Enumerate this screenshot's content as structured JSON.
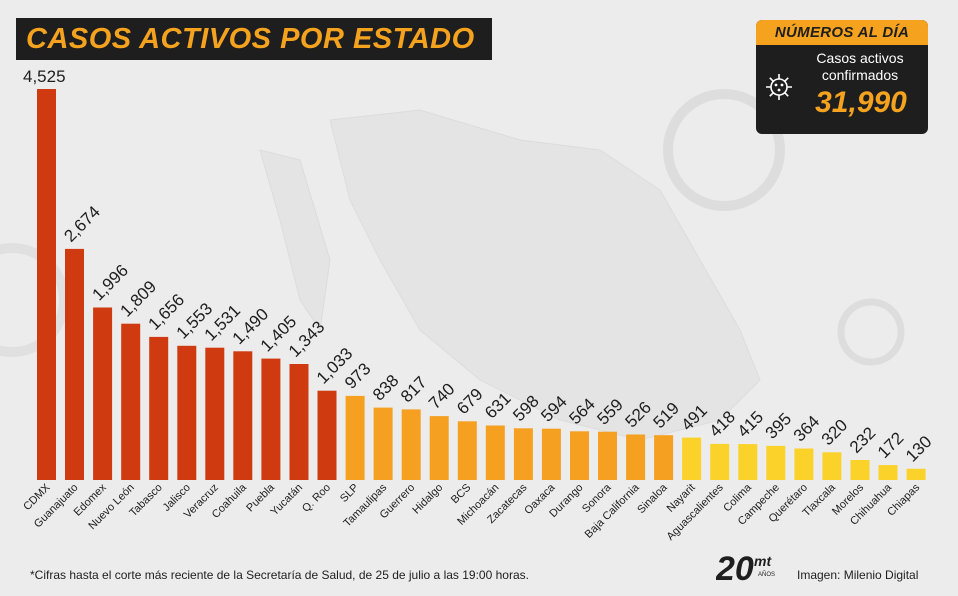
{
  "header": {
    "title": "CASOS ACTIVOS POR ESTADO"
  },
  "summary": {
    "heading": "NÚMEROS AL DÍA",
    "label_line1": "Casos activos",
    "label_line2": "confirmados",
    "value": "31,990",
    "icon": "virus-icon"
  },
  "footer": {
    "note": "*Cifras hasta el corte más reciente de la Secretaría de Salud, de 25 de julio a las 19:00 horas.",
    "credit": "Imagen: Milenio Digital",
    "logo_number": "20",
    "logo_brand": "mt",
    "logo_sub": "AÑOS"
  },
  "colors": {
    "high": "#cf3a10",
    "mid": "#f5a021",
    "low": "#fad22a",
    "title_text": "#f5a21e",
    "dark": "#1e1e1e"
  },
  "chart_data": {
    "type": "bar",
    "title": "CASOS ACTIVOS POR ESTADO",
    "xlabel": "",
    "ylabel": "",
    "ylim": [
      0,
      4525
    ],
    "grid": false,
    "categories": [
      "CDMX",
      "Guanajuato",
      "Edomex",
      "Nuevo León",
      "Tabasco",
      "Jalisco",
      "Veracruz",
      "Coahuila",
      "Puebla",
      "Yucatán",
      "Q. Roo",
      "SLP",
      "Tamaulipas",
      "Guerrero",
      "Hidalgo",
      "BCS",
      "Michoacán",
      "Zacatecas",
      "Oaxaca",
      "Durango",
      "Sonora",
      "Baja California",
      "Sinaloa",
      "Nayarit",
      "Aguascalientes",
      "Colima",
      "Campeche",
      "Querétaro",
      "Tlaxcala",
      "Morelos",
      "Chihuahua",
      "Chiapas"
    ],
    "values": [
      4525,
      2674,
      1996,
      1809,
      1656,
      1553,
      1531,
      1490,
      1405,
      1343,
      1033,
      973,
      838,
      817,
      740,
      679,
      631,
      598,
      594,
      564,
      559,
      526,
      519,
      491,
      418,
      415,
      395,
      364,
      320,
      232,
      172,
      130
    ],
    "value_labels": [
      "4,525",
      "2,674",
      "1,996",
      "1,809",
      "1,656",
      "1,553",
      "1,531",
      "1,490",
      "1,405",
      "1,343",
      "1,033",
      "973",
      "838",
      "817",
      "740",
      "679",
      "631",
      "598",
      "594",
      "564",
      "559",
      "526",
      "519",
      "491",
      "418",
      "415",
      "395",
      "364",
      "320",
      "232",
      "172",
      "130"
    ],
    "color_groups": [
      "high",
      "high",
      "high",
      "high",
      "high",
      "high",
      "high",
      "high",
      "high",
      "high",
      "high",
      "mid",
      "mid",
      "mid",
      "mid",
      "mid",
      "mid",
      "mid",
      "mid",
      "mid",
      "mid",
      "mid",
      "mid",
      "low",
      "low",
      "low",
      "low",
      "low",
      "low",
      "low",
      "low",
      "low"
    ]
  }
}
